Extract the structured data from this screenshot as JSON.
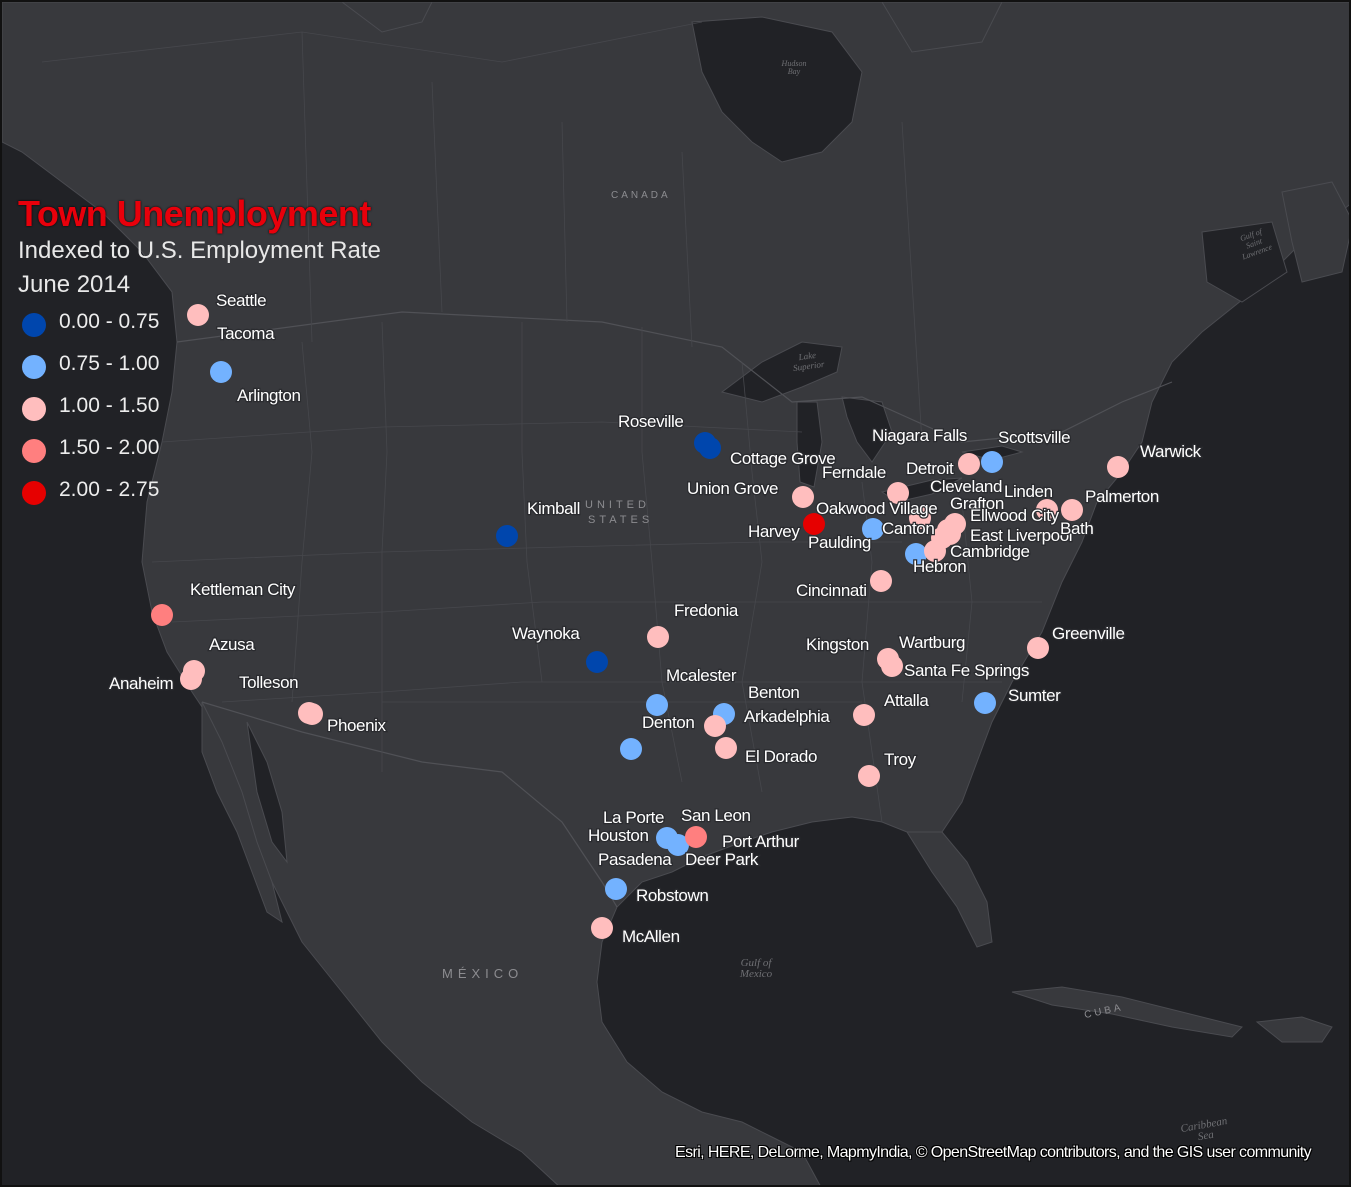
{
  "legend": {
    "title": "Town Unemployment",
    "subtitle": "Indexed to U.S. Employment Rate",
    "date": "June 2014",
    "classes": [
      {
        "label": "0.00 - 0.75",
        "color": "#0046ad"
      },
      {
        "label": "0.75 - 1.00",
        "color": "#73b2ff"
      },
      {
        "label": "1.00 - 1.50",
        "color": "#ffbebe"
      },
      {
        "label": "1.50 - 2.00",
        "color": "#ff7f7f"
      },
      {
        "label": "2.00 - 2.75",
        "color": "#e60000"
      }
    ]
  },
  "basemap_labels": {
    "canada": "CANADA",
    "united_states": [
      "UNITED",
      "STATES"
    ],
    "mexico": "MÉXICO",
    "cuba": "CUBA",
    "hudson_bay": [
      "Hudson",
      "Bay"
    ],
    "lake_superior": [
      "Lake",
      "Superior"
    ],
    "gulf_of_mexico": [
      "Gulf of",
      "Mexico"
    ],
    "gulf_of_st_lawrence": [
      "Gulf of",
      "Saint",
      "Lawrence"
    ],
    "caribbean_sea": [
      "Caribbean",
      "Sea"
    ]
  },
  "attribution": "Esri, HERE, DeLorme, MapmyIndia, © OpenStreetMap contributors, and the GIS user community",
  "towns": [
    {
      "name": "Seattle",
      "cls": 2
    },
    {
      "name": "Tacoma",
      "cls": 1
    },
    {
      "name": "Arlington",
      "cls": 1
    },
    {
      "name": "Kettleman City",
      "cls": 3
    },
    {
      "name": "Azusa",
      "cls": 2
    },
    {
      "name": "Anaheim",
      "cls": 2
    },
    {
      "name": "Tolleson",
      "cls": 2
    },
    {
      "name": "Phoenix",
      "cls": 2
    },
    {
      "name": "Kimball",
      "cls": 0
    },
    {
      "name": "Waynoka",
      "cls": 0
    },
    {
      "name": "Roseville",
      "cls": 0
    },
    {
      "name": "Cottage Grove",
      "cls": 0
    },
    {
      "name": "Union Grove",
      "cls": 2
    },
    {
      "name": "Harvey",
      "cls": 4
    },
    {
      "name": "Fredonia",
      "cls": 2
    },
    {
      "name": "Mcalester",
      "cls": 1
    },
    {
      "name": "Denton",
      "cls": 1
    },
    {
      "name": "Benton",
      "cls": 1
    },
    {
      "name": "Arkadelphia",
      "cls": 2
    },
    {
      "name": "El Dorado",
      "cls": 2
    },
    {
      "name": "La Porte",
      "cls": 1
    },
    {
      "name": "Houston",
      "cls": 1
    },
    {
      "name": "Pasadena",
      "cls": 1
    },
    {
      "name": "Deer Park",
      "cls": 1
    },
    {
      "name": "San Leon",
      "cls": 3
    },
    {
      "name": "Port Arthur",
      "cls": 3
    },
    {
      "name": "Robstown",
      "cls": 1
    },
    {
      "name": "McAllen",
      "cls": 2
    },
    {
      "name": "Ferndale",
      "cls": 2
    },
    {
      "name": "Detroit",
      "cls": 2
    },
    {
      "name": "Niagara Falls",
      "cls": 2
    },
    {
      "name": "Scottsville",
      "cls": 1
    },
    {
      "name": "Warwick",
      "cls": 2
    },
    {
      "name": "Oakwood Village",
      "cls": 2
    },
    {
      "name": "Paulding",
      "cls": 1
    },
    {
      "name": "Cleveland",
      "cls": 2
    },
    {
      "name": "Grafton",
      "cls": 2
    },
    {
      "name": "Canton",
      "cls": 2
    },
    {
      "name": "Ellwood City",
      "cls": 2
    },
    {
      "name": "East Liverpool",
      "cls": 2
    },
    {
      "name": "Linden",
      "cls": 2
    },
    {
      "name": "Palmerton",
      "cls": 2
    },
    {
      "name": "Bath",
      "cls": 2
    },
    {
      "name": "Hebron",
      "cls": 1
    },
    {
      "name": "Cambridge",
      "cls": 2
    },
    {
      "name": "Cincinnati",
      "cls": 2
    },
    {
      "name": "Kingston",
      "cls": 2
    },
    {
      "name": "Wartburg",
      "cls": 2
    },
    {
      "name": "Santa Fe Springs",
      "cls": 2
    },
    {
      "name": "Greenville",
      "cls": 2
    },
    {
      "name": "Sumter",
      "cls": 1
    },
    {
      "name": "Attalla",
      "cls": 2
    },
    {
      "name": "Troy",
      "cls": 2
    }
  ]
}
